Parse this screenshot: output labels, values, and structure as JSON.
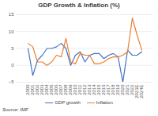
{
  "chart_data": {
    "type": "line",
    "title": "GDP Growth & Inflation (%)",
    "caption": "Source: IMF",
    "categories": [
      "2000",
      "2001",
      "2002",
      "2003",
      "2004",
      "2005",
      "2006",
      "2007",
      "2008",
      "2009",
      "2010",
      "2011",
      "2012",
      "2013",
      "2014",
      "2015",
      "2016",
      "2017",
      "2018",
      "2019",
      "2020",
      "2021",
      "2022",
      "2023E",
      "2024E"
    ],
    "series": [
      {
        "name": "GDP growth",
        "color": "#4472c4",
        "values": [
          5,
          -3,
          1.5,
          3,
          5,
          5,
          5.5,
          6.5,
          5,
          0,
          3,
          4,
          1,
          3,
          3.5,
          3.5,
          2,
          3,
          3.5,
          2.5,
          -5,
          4.5,
          3,
          3,
          4
        ]
      },
      {
        "name": "Inflation",
        "color": "#ed7d31",
        "values": [
          6.5,
          5.5,
          1,
          1,
          0,
          1,
          3,
          2.5,
          8,
          1,
          0.5,
          3.5,
          3,
          3,
          0.5,
          0.5,
          1,
          2,
          2.5,
          2.5,
          3,
          4,
          14,
          9,
          4.5
        ]
      }
    ],
    "ylim": [
      -5,
      15
    ],
    "yticks": [
      -5,
      0,
      5,
      10,
      15
    ],
    "grid": true,
    "legend": "bottom"
  }
}
